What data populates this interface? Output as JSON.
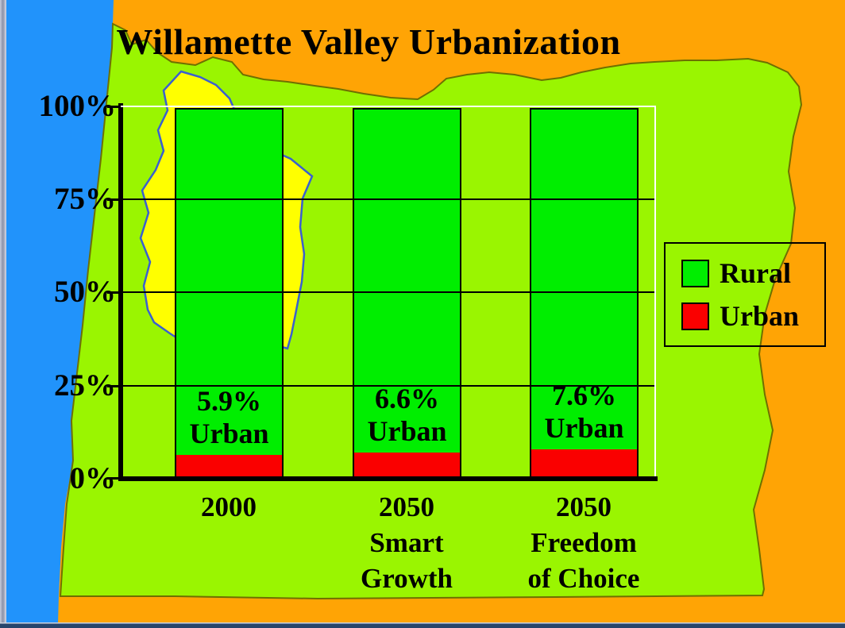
{
  "slide": {
    "title": "Willamette Valley Urbanization"
  },
  "colors": {
    "background_orange": "#ffa405",
    "ocean_blue": "#2193fb",
    "state_green": "#9af501",
    "valley_yellow": "#ffff00",
    "valley_outline_blue": "#3a5fd0",
    "rural_green": "#00ee00",
    "urban_red": "#fa0000",
    "bottom_strip_navy": "#27446b"
  },
  "y_axis": {
    "ticks": [
      "100%",
      "75%",
      "50%",
      "25%",
      "0%"
    ]
  },
  "legend": {
    "items": [
      {
        "label": "Rural",
        "color": "#00ee00"
      },
      {
        "label": "Urban",
        "color": "#fa0000"
      }
    ]
  },
  "chart_data": {
    "type": "bar",
    "stacked": true,
    "units": "percent of land area",
    "title": "Willamette Valley Urbanization",
    "xlabel": "",
    "ylabel": "",
    "ylim": [
      0,
      100
    ],
    "y_tick_labels": [
      "0%",
      "25%",
      "50%",
      "75%",
      "100%"
    ],
    "gridlines_at_pct": [
      25,
      50,
      75,
      100
    ],
    "legend_position": "right",
    "categories": [
      "2000",
      "2050 Smart Growth",
      "2050 Freedom of Choice"
    ],
    "series": [
      {
        "name": "Urban",
        "color": "#fa0000",
        "values": [
          5.9,
          6.6,
          7.6
        ]
      },
      {
        "name": "Rural",
        "color": "#00ee00",
        "values": [
          94.1,
          93.4,
          92.4
        ]
      }
    ],
    "bars": [
      {
        "category_lines": [
          "2000"
        ],
        "urban_pct": 5.9,
        "label_lines": [
          "5.9%",
          "Urban"
        ]
      },
      {
        "category_lines": [
          "2050",
          "Smart",
          "Growth"
        ],
        "urban_pct": 6.6,
        "label_lines": [
          "6.6%",
          "Urban"
        ]
      },
      {
        "category_lines": [
          "2050",
          "Freedom",
          "of Choice"
        ],
        "urban_pct": 7.6,
        "label_lines": [
          "7.6%",
          "Urban"
        ]
      }
    ]
  }
}
